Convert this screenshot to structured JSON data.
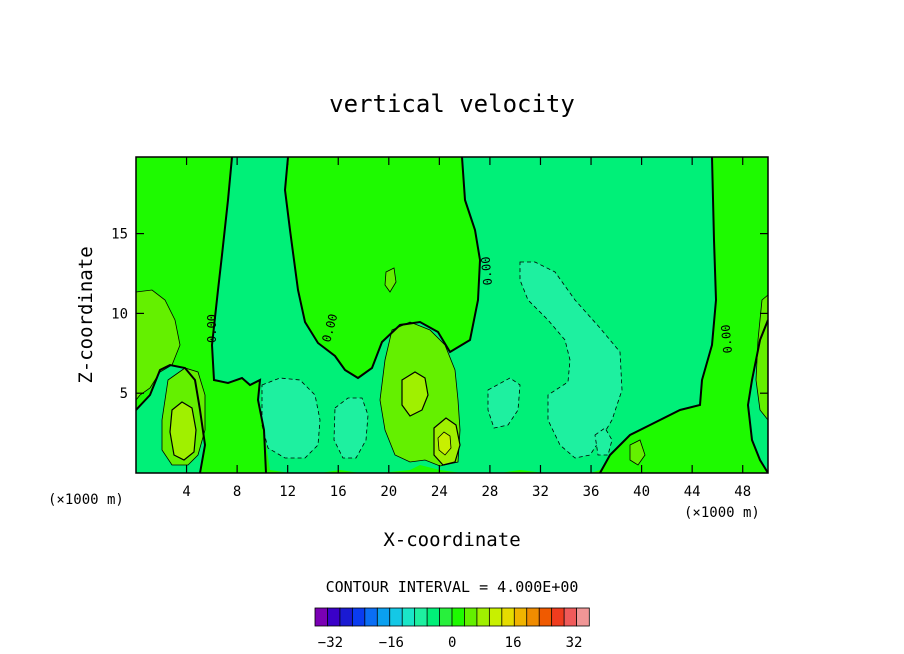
{
  "chart_data": {
    "type": "heatmap",
    "title": "vertical velocity",
    "xlabel": "X-coordinate",
    "ylabel": "Z-coordinate",
    "x_unit_left": "(×1000 m)",
    "x_unit_right": "(×1000 m)",
    "xlim": [
      0,
      50
    ],
    "ylim": [
      0,
      19.8
    ],
    "x_ticks": [
      4,
      8,
      12,
      16,
      20,
      24,
      28,
      32,
      36,
      40,
      44,
      48
    ],
    "y_ticks": [
      5,
      10,
      15
    ],
    "contour_interval_label": "CONTOUR INTERVAL = 4.000E+00",
    "zero_contour_label": "0.00",
    "colorbar": {
      "min": -36,
      "max": 36,
      "step": 4,
      "tick_values": [
        -32,
        -16,
        0,
        16,
        32
      ],
      "tick_labels": [
        "−32",
        "−16",
        "0",
        "16",
        "32"
      ],
      "colors": [
        "#7a00b4",
        "#3a00c8",
        "#1a1ad2",
        "#0a3cf0",
        "#0a6ef5",
        "#0aa0f0",
        "#14c8e6",
        "#1ae6c8",
        "#1ef0a0",
        "#00f078",
        "#28f03c",
        "#1efa00",
        "#64f000",
        "#a0f000",
        "#c8f000",
        "#e6dc00",
        "#f0b400",
        "#f08c00",
        "#f05a00",
        "#f03c1e",
        "#f05a5a",
        "#f09696"
      ]
    },
    "background_value_range": [
      0,
      4
    ],
    "features": [
      {
        "label": "updraft core",
        "x": 3.6,
        "z": 2.6,
        "max": 12
      },
      {
        "label": "updraft core",
        "x": 21.8,
        "z": 4.8,
        "max": 8
      },
      {
        "label": "updraft core",
        "x": 24.5,
        "z": 2.2,
        "max": 16
      },
      {
        "label": "downdraft region",
        "x": 35.0,
        "z": 7.0,
        "min": -8
      },
      {
        "label": "downdraft region",
        "x": 12.5,
        "z": 2.5,
        "min": -8
      },
      {
        "label": "downdraft region",
        "x": 16.5,
        "z": 3.0,
        "min": -8
      }
    ]
  }
}
